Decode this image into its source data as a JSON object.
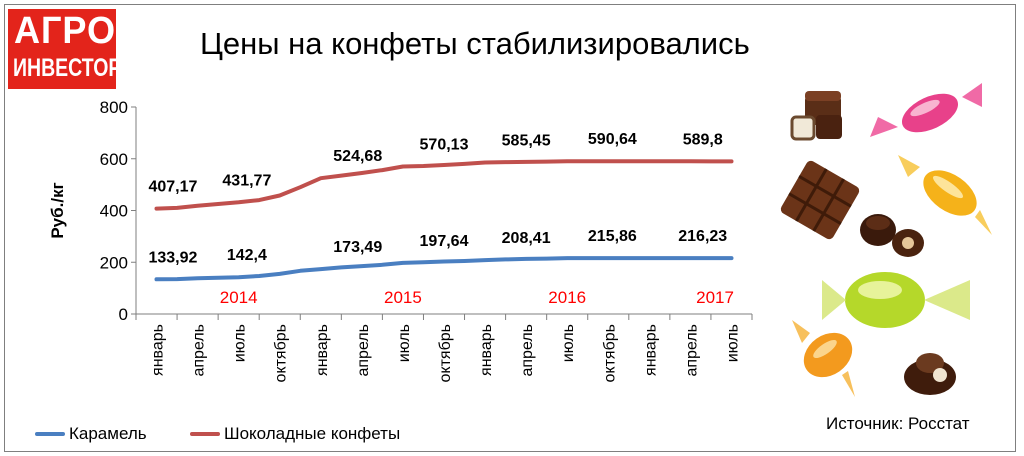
{
  "logo": {
    "line1": "АГРО",
    "line2": "ИНВЕСТОР"
  },
  "title": "Цены на конфеты стабилизировались",
  "source": "Источник: Росстат",
  "colors": {
    "caramel": "#4a7fc1",
    "chocolate": "#c0504d",
    "year_labels": "#ff0000",
    "logo_bg": "#e3241b"
  },
  "chart_data": {
    "type": "line",
    "ylabel": "Руб./кг",
    "ylim": [
      0,
      800
    ],
    "yticks": [
      0,
      200,
      400,
      600,
      800
    ],
    "categories": [
      "январь",
      "апрель",
      "июль",
      "октябрь",
      "январь",
      "апрель",
      "июль",
      "октябрь",
      "январь",
      "апрель",
      "июль",
      "октябрь",
      "январь",
      "апрель",
      "июль"
    ],
    "years": [
      {
        "label": "2014",
        "category_index": 2
      },
      {
        "label": "2015",
        "category_index": 6
      },
      {
        "label": "2016",
        "category_index": 10
      },
      {
        "label": "2017",
        "category_index": 13.6
      }
    ],
    "grid": false,
    "legend_position": "bottom-left",
    "series": [
      {
        "name": "Карамель",
        "color": "#4a7fc1",
        "x": [
          0,
          0.5,
          1,
          1.5,
          2,
          2.5,
          3,
          3.5,
          4,
          4.5,
          5,
          5.5,
          6,
          6.5,
          7,
          7.5,
          8,
          8.5,
          9,
          9.5,
          10,
          10.5,
          11,
          11.5,
          12,
          12.5,
          13,
          13.5,
          14
        ],
        "values": [
          133.92,
          135,
          138,
          140,
          142.4,
          147,
          155,
          167,
          173.49,
          180,
          185,
          190,
          197.64,
          200,
          203,
          205,
          208.41,
          211,
          213,
          214,
          215.86,
          216,
          216.2,
          216.2,
          216.23,
          216.2,
          216.2,
          216.2,
          216.23
        ],
        "labels": [
          {
            "x": 0.4,
            "value": 133.92,
            "text": "133,92"
          },
          {
            "x": 2.2,
            "value": 142.4,
            "text": "142,4"
          },
          {
            "x": 4.9,
            "value": 173.49,
            "text": "173,49"
          },
          {
            "x": 7.0,
            "value": 197.64,
            "text": "197,64"
          },
          {
            "x": 9.0,
            "value": 208.41,
            "text": "208,41"
          },
          {
            "x": 11.1,
            "value": 215.86,
            "text": "215,86"
          },
          {
            "x": 13.3,
            "value": 216.23,
            "text": "216,23"
          }
        ]
      },
      {
        "name": "Шоколадные конфеты",
        "color": "#c0504d",
        "x": [
          0,
          0.5,
          1,
          1.5,
          2,
          2.5,
          3,
          3.5,
          4,
          4.5,
          5,
          5.5,
          6,
          6.5,
          7,
          7.5,
          8,
          8.5,
          9,
          9.5,
          10,
          10.5,
          11,
          11.5,
          12,
          12.5,
          13,
          13.5,
          14
        ],
        "values": [
          407.17,
          410,
          418,
          425,
          431.77,
          440,
          458,
          490,
          524.68,
          535,
          545,
          556,
          570.13,
          572,
          576,
          580,
          585.45,
          587,
          588,
          589,
          590.64,
          590.5,
          590.4,
          590.3,
          590.2,
          590,
          590,
          589.9,
          589.8
        ],
        "labels": [
          {
            "x": 0.4,
            "value": 407.17,
            "text": "407,17"
          },
          {
            "x": 2.2,
            "value": 431.77,
            "text": "431,77"
          },
          {
            "x": 4.9,
            "value": 524.68,
            "text": "524,68"
          },
          {
            "x": 7.0,
            "value": 570.13,
            "text": "570,13"
          },
          {
            "x": 9.0,
            "value": 585.45,
            "text": "585,45"
          },
          {
            "x": 11.1,
            "value": 590.64,
            "text": "590,64"
          },
          {
            "x": 13.3,
            "value": 589.8,
            "text": "589,8"
          }
        ]
      }
    ]
  }
}
